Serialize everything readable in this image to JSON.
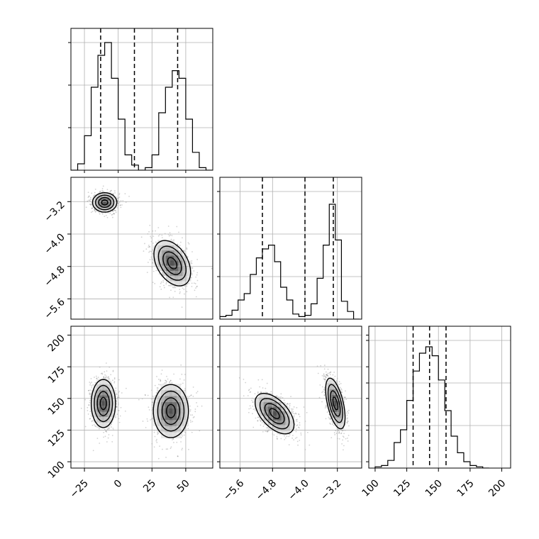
{
  "chart_data": {
    "type": "corner",
    "title": "",
    "grid": true,
    "parameters": [
      {
        "ticks": [
          -25,
          0,
          25,
          50
        ],
        "range": [
          -35,
          70
        ]
      },
      {
        "ticks": [
          -5.6,
          -4.8,
          -4.0,
          -3.2
        ],
        "range": [
          -6.1,
          -2.6
        ]
      },
      {
        "ticks": [
          100,
          125,
          150,
          175,
          200
        ],
        "range": [
          95,
          207
        ]
      }
    ],
    "tick_labels": {
      "p0": [
        "−25",
        "0",
        "25",
        "50"
      ],
      "p1": [
        "−5.6",
        "−4.8",
        "−4.0",
        "−3.2"
      ],
      "p2": [
        "100",
        "125",
        "150",
        "175",
        "200"
      ]
    },
    "histograms": [
      {
        "parameter": 0,
        "bins": [
          -35,
          -30,
          -25,
          -20,
          -15,
          -10,
          -5,
          0,
          5,
          10,
          15,
          20,
          25,
          30,
          35,
          40,
          45,
          50,
          55,
          60,
          65,
          70
        ],
        "counts": [
          0,
          0.05,
          0.27,
          0.65,
          0.9,
          1.0,
          0.72,
          0.4,
          0.12,
          0.04,
          0,
          0.02,
          0.12,
          0.45,
          0.65,
          0.78,
          0.72,
          0.4,
          0.14,
          0.02,
          0
        ],
        "quantiles": [
          -13,
          12,
          44
        ]
      },
      {
        "parameter": 1,
        "bins": [
          -6.1,
          -5.95,
          -5.8,
          -5.65,
          -5.5,
          -5.35,
          -5.2,
          -5.05,
          -4.9,
          -4.75,
          -4.6,
          -4.45,
          -4.3,
          -4.15,
          -4.0,
          -3.85,
          -3.7,
          -3.55,
          -3.4,
          -3.25,
          -3.1,
          -2.95,
          -2.8,
          -2.65
        ],
        "counts": [
          0.02,
          0.03,
          0.07,
          0.15,
          0.2,
          0.35,
          0.48,
          0.55,
          0.58,
          0.45,
          0.25,
          0.15,
          0.04,
          0.02,
          0.03,
          0.12,
          0.32,
          0.58,
          0.9,
          0.62,
          0.14,
          0.06,
          0
        ],
        "quantiles": [
          -5.05,
          -4.0,
          -3.3
        ]
      },
      {
        "parameter": 2,
        "bins": [
          100,
          105,
          110,
          115,
          120,
          125,
          130,
          135,
          140,
          145,
          150,
          155,
          160,
          165,
          170,
          175,
          180,
          185,
          190
        ],
        "counts": [
          0.01,
          0.02,
          0.06,
          0.2,
          0.3,
          0.53,
          0.76,
          0.9,
          0.95,
          0.88,
          0.69,
          0.45,
          0.25,
          0.12,
          0.05,
          0.02,
          0.01,
          0
        ],
        "quantiles": [
          130,
          143,
          156
        ]
      }
    ],
    "contours_2d": [
      {
        "x_param": 0,
        "y_param": 1,
        "modes": [
          {
            "center": [
              -10,
              -3.22
            ],
            "sd": [
              4.5,
              0.12
            ],
            "corr": 0
          },
          {
            "center": [
              40,
              -4.72
            ],
            "sd": [
              6.8,
              0.28
            ],
            "corr": -0.4
          }
        ]
      },
      {
        "x_param": 0,
        "y_param": 2,
        "modes": [
          {
            "center": [
              -11,
              146
            ],
            "sd": [
              4.5,
              9.5
            ],
            "corr": 0
          },
          {
            "center": [
              39,
              140
            ],
            "sd": [
              6.5,
              10.5
            ],
            "corr": 0
          }
        ]
      },
      {
        "x_param": 1,
        "y_param": 2,
        "modes": [
          {
            "center": [
              -4.75,
              138
            ],
            "sd": [
              0.24,
              8.0
            ],
            "corr": -0.55
          },
          {
            "center": [
              -3.25,
              146
            ],
            "sd": [
              0.12,
              10.0
            ],
            "corr": -0.55
          }
        ]
      }
    ]
  }
}
